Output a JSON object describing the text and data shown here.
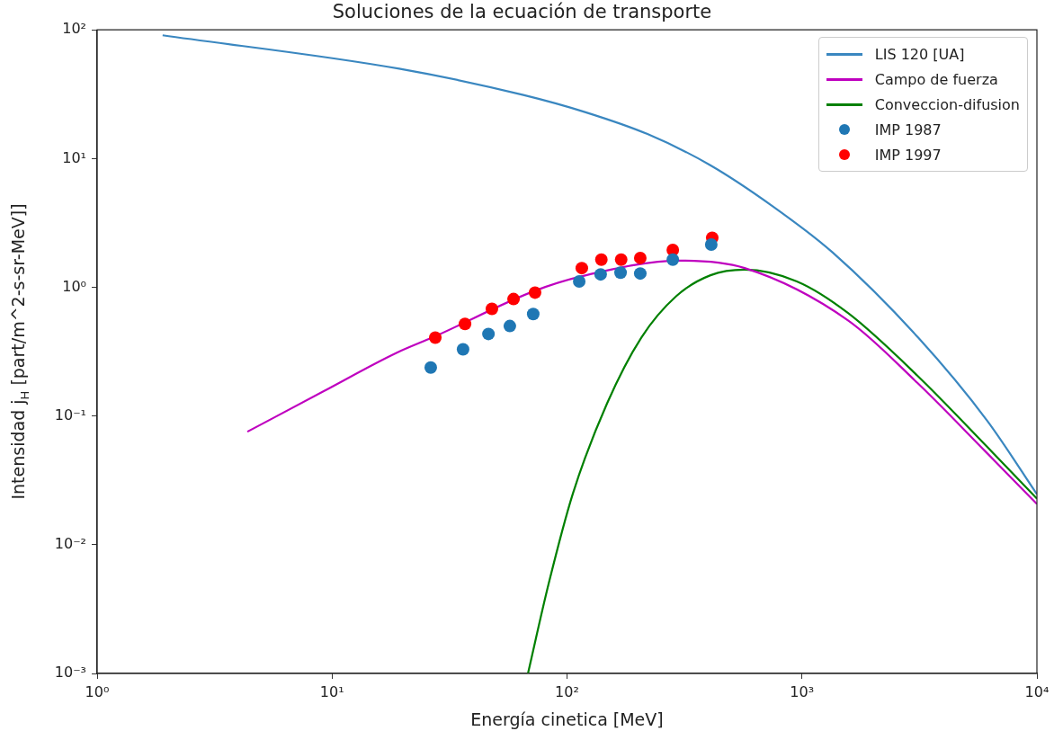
{
  "chart_data": {
    "type": "line",
    "title": "Soluciones de la ecuación de transporte",
    "xlabel": "Energía cinetica [MeV]",
    "ylabel": "Intensidad j$_{H}$ [part/m^2-s-sr-MeV]]",
    "log": "xy",
    "grid": false,
    "legend": "top right",
    "xlim": [
      1,
      10000
    ],
    "ylim": [
      0.001,
      100
    ],
    "xticks": [
      {
        "value": 1,
        "label": "10⁰"
      },
      {
        "value": 10,
        "label": "10¹"
      },
      {
        "value": 100,
        "label": "10²"
      },
      {
        "value": 1000,
        "label": "10³"
      },
      {
        "value": 10000,
        "label": "10⁴"
      }
    ],
    "yticks": [
      {
        "value": 0.001,
        "label": "10⁻³"
      },
      {
        "value": 0.01,
        "label": "10⁻²"
      },
      {
        "value": 0.1,
        "label": "10⁻¹"
      },
      {
        "value": 1,
        "label": "10⁰"
      },
      {
        "value": 10,
        "label": "10¹"
      },
      {
        "value": 100,
        "label": "10²"
      }
    ],
    "series": [
      {
        "name": "LIS 120 [UA]",
        "color": "#3a87c0",
        "x": [
          1.9,
          19.3,
          65.2,
          120,
          220,
          404,
          743,
          1352,
          3126,
          6150,
          10000
        ],
        "values": [
          90.7,
          49.9,
          31.2,
          22.9,
          15.5,
          8.96,
          4.32,
          1.86,
          0.406,
          0.0916,
          0.0247
        ]
      },
      {
        "name": "Campo de fuerza",
        "color": "#bf00bf",
        "x": [
          4.36,
          9.22,
          18.7,
          27.2,
          71.8,
          116,
          305,
          570,
          1571,
          3098,
          6053,
          10000
        ],
        "values": [
          0.0755,
          0.156,
          0.308,
          0.413,
          0.929,
          1.22,
          1.61,
          1.41,
          0.553,
          0.181,
          0.0528,
          0.0207
        ]
      },
      {
        "name": "Conveccion-difusion",
        "color": "#008000",
        "x": [
          68.2,
          83.5,
          106,
          148,
          207,
          292,
          408,
          570,
          951,
          1571,
          3098,
          6053,
          10000
        ],
        "values": [
          0.001,
          0.00497,
          0.0251,
          0.125,
          0.406,
          0.855,
          1.24,
          1.37,
          1.11,
          0.63,
          0.206,
          0.0592,
          0.0228
        ]
      },
      {
        "name": "IMP 1987",
        "type": "scatter",
        "marker": "circle",
        "color": "#1f77b4",
        "x": [
          26.3,
          36.1,
          46.3,
          57.1,
          71.8,
          112.7,
          139,
          169,
          205,
          282,
          411
        ],
        "values": [
          0.238,
          0.33,
          0.434,
          0.5,
          0.62,
          1.11,
          1.26,
          1.3,
          1.28,
          1.64,
          2.15
        ]
      },
      {
        "name": "IMP 1997",
        "type": "scatter",
        "marker": "circle",
        "color": "#ff0000",
        "x": [
          27.5,
          36.8,
          47.9,
          59.2,
          73.1,
          115.6,
          140,
          170,
          205,
          282,
          415
        ],
        "values": [
          0.406,
          0.52,
          0.68,
          0.81,
          0.91,
          1.41,
          1.64,
          1.64,
          1.69,
          1.95,
          2.42
        ]
      }
    ]
  }
}
